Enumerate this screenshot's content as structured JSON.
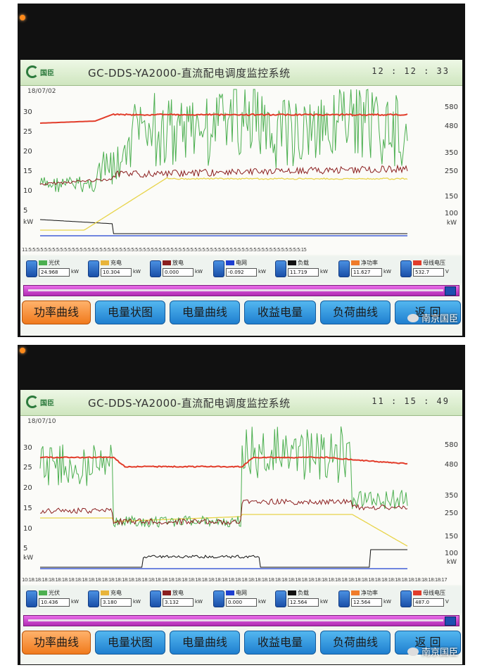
{
  "app": {
    "logo_text": "国臣",
    "title": "GC-DDS-YA2000-直流配电调度监控系统",
    "watermark": "南京国臣"
  },
  "left_ticks": [
    "30",
    "25",
    "20",
    "15",
    "10",
    "5"
  ],
  "right_ticks": [
    "580",
    "480",
    "350",
    "250",
    "150",
    "100"
  ],
  "unit_label": "kW",
  "nav_buttons": [
    "功率曲线",
    "电量状图",
    "电量曲线",
    "收益电量",
    "负荷曲线",
    "返 回"
  ],
  "colors": {
    "pv": "#4caf50",
    "charge": "#e8d44a",
    "discharge": "#8b1e1e",
    "grid": "#1e3fd0",
    "load": "#111111",
    "net": "#f07c2a",
    "bus": "#e23c2a"
  },
  "screens": [
    {
      "clock": "12 : 12 : 33",
      "date": "18/07/02",
      "x_axis_text": "11:5:5:5:5:5:5:5:5:5:5:5:5:5:5:5:5:5:5:5:5:5:5:5:5:5:5:5:5:5:5:5:5:5:5:5:5:5:5:5:5:5:5:5:5:5:5:5:5:5:5:5:5:5:5:5:5:5:5:5:5:5:5:5:5:5:5:5:5:5:15",
      "legend": [
        {
          "name": "光伏",
          "value": "24.968",
          "unit": "kW",
          "color_key": "pv"
        },
        {
          "name": "充电",
          "value": "10.304",
          "unit": "kW",
          "color_key": "charge"
        },
        {
          "name": "放电",
          "value": "0.000",
          "unit": "kW",
          "color_key": "discharge"
        },
        {
          "name": "电网",
          "value": "-0.092",
          "unit": "kW",
          "color_key": "grid"
        },
        {
          "name": "负载",
          "value": "11.719",
          "unit": "kW",
          "color_key": "load"
        },
        {
          "name": "净功率",
          "value": "11.627",
          "unit": "kW",
          "color_key": "net"
        },
        {
          "name": "母线电压",
          "value": "532.7",
          "unit": "V",
          "color_key": "bus"
        }
      ]
    },
    {
      "clock": "11 : 15 : 49",
      "date": "18/07/10",
      "x_axis_text": "10:18:18:18:18:18:18:18:18:18:18:18:18:18:18:18:18:18:18:18:18:18:18:18:18:18:18:18:18:18:18:18:18:18:18:18:18:18:18:18:18:18:18:18:18:18:18:18:18:18:18:18:18:18:18:18:18:18:18:18:18:18:18:17",
      "legend": [
        {
          "name": "光伏",
          "value": "10.436",
          "unit": "kW",
          "color_key": "pv"
        },
        {
          "name": "充电",
          "value": "3.180",
          "unit": "kW",
          "color_key": "charge"
        },
        {
          "name": "放电",
          "value": "3.132",
          "unit": "kW",
          "color_key": "discharge"
        },
        {
          "name": "电网",
          "value": "0.000",
          "unit": "kW",
          "color_key": "grid"
        },
        {
          "name": "负载",
          "value": "12.564",
          "unit": "kW",
          "color_key": "load"
        },
        {
          "name": "净功率",
          "value": "12.564",
          "unit": "kW",
          "color_key": "net"
        },
        {
          "name": "母线电压",
          "value": "487.0",
          "unit": "V",
          "color_key": "bus"
        }
      ]
    }
  ]
}
